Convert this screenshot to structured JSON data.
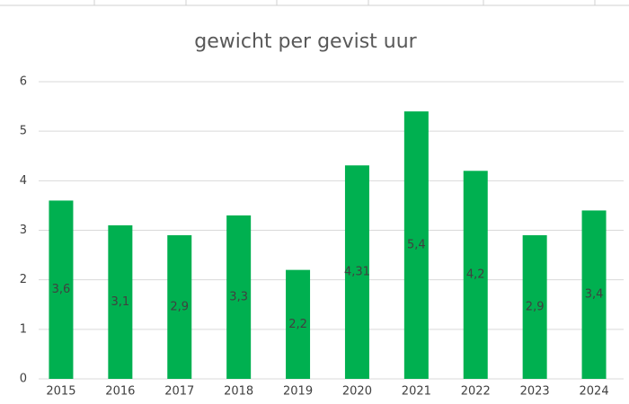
{
  "chart_data": {
    "type": "bar",
    "title": "gewicht per gevist uur",
    "categories": [
      "2015",
      "2016",
      "2017",
      "2018",
      "2019",
      "2020",
      "2021",
      "2022",
      "2023",
      "2024"
    ],
    "values": [
      3.6,
      3.1,
      2.9,
      3.3,
      2.2,
      4.31,
      5.4,
      4.2,
      2.9,
      3.4
    ],
    "value_labels": [
      "3,6",
      "3,1",
      "2,9",
      "3,3",
      "2,2",
      "4,31",
      "5,4",
      "4,2",
      "2,9",
      "3,4"
    ],
    "color": "#00b050",
    "ylim": [
      0,
      6
    ],
    "yticks": [
      0,
      1,
      2,
      3,
      4,
      5,
      6
    ],
    "grid": true
  }
}
